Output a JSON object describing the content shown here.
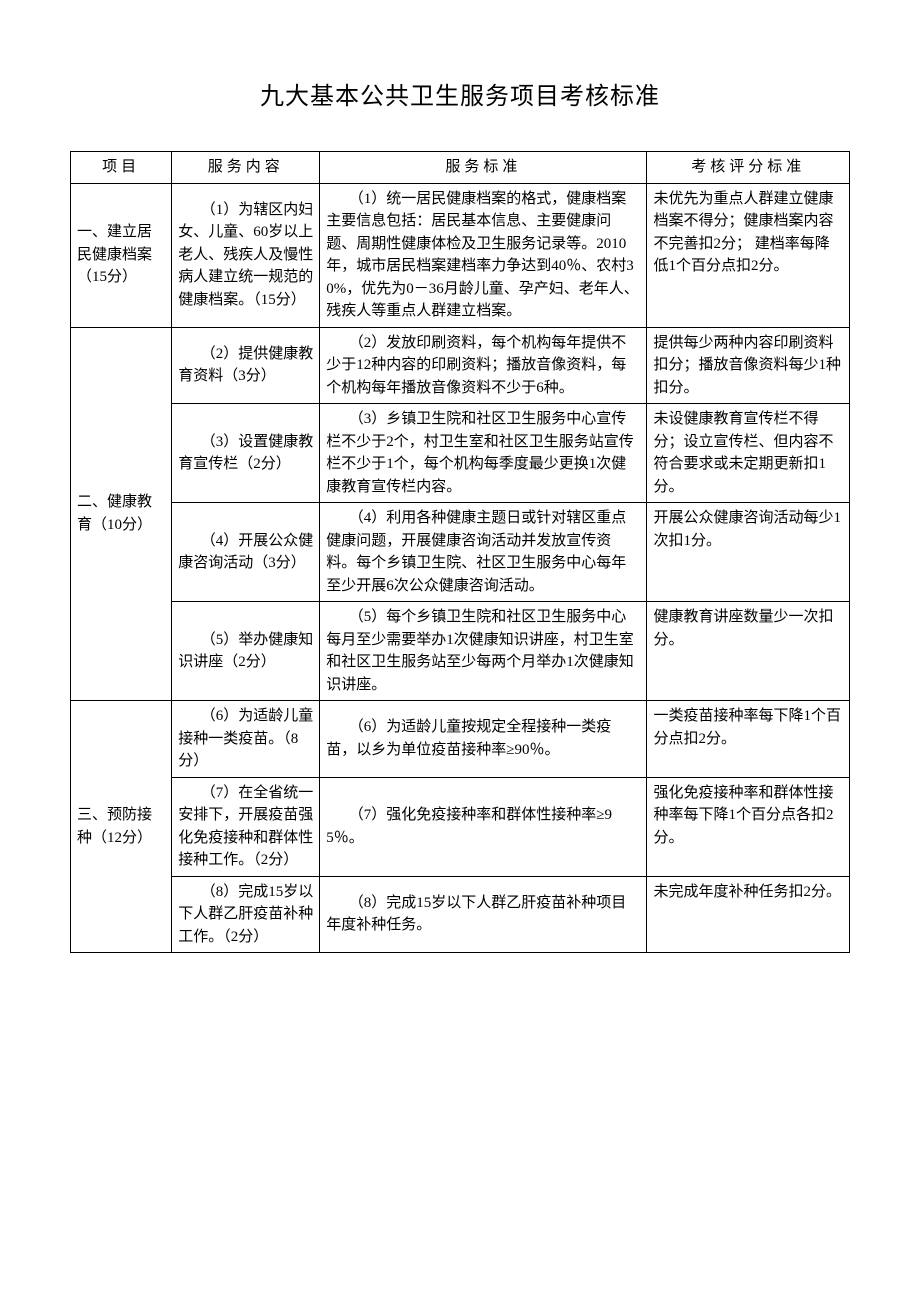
{
  "title": "九大基本公共卫生服务项目考核标准",
  "headers": {
    "project": "项目",
    "content": "服务内容",
    "standard": "服务标准",
    "scoring": "考核评分标准"
  },
  "sections": [
    {
      "project": "一、建立居民健康档案（15分）",
      "rows": [
        {
          "content": "（1）为辖区内妇女、儿童、60岁以上老人、残疾人及慢性病人建立统一规范的健康档案。（15分）",
          "standard": "（1）统一居民健康档案的格式，健康档案主要信息包括：居民基本信息、主要健康问题、周期性健康体检及卫生服务记录等。2010年，城市居民档案建档率力争达到40％、农村30%，优先为0－36月龄儿童、孕产妇、老年人、残疾人等重点人群建立档案。",
          "scoring": "未优先为重点人群建立健康档案不得分；健康档案内容不完善扣2分； 建档率每降低1个百分点扣2分。"
        }
      ]
    },
    {
      "project": "二、健康教育（10分）",
      "rows": [
        {
          "content": "（2）提供健康教育资料（3分）",
          "standard": "（2）发放印刷资料，每个机构每年提供不少于12种内容的印刷资料；播放音像资料，每个机构每年播放音像资料不少于6种。",
          "scoring": "提供每少两种内容印刷资料扣分；播放音像资料每少1种扣分。"
        },
        {
          "content": "（3）设置健康教育宣传栏（2分）",
          "standard": "（3）乡镇卫生院和社区卫生服务中心宣传栏不少于2个，村卫生室和社区卫生服务站宣传栏不少于1个，每个机构每季度最少更换1次健康教育宣传栏内容。",
          "scoring": "未设健康教育宣传栏不得分；设立宣传栏、但内容不符合要求或未定期更新扣1分。"
        },
        {
          "content": "（4）开展公众健康咨询活动（3分）",
          "standard": "（4）利用各种健康主题日或针对辖区重点健康问题，开展健康咨询活动并发放宣传资料。每个乡镇卫生院、社区卫生服务中心每年至少开展6次公众健康咨询活动。",
          "scoring": "开展公众健康咨询活动每少1次扣1分。"
        },
        {
          "content": "（5）举办健康知识讲座（2分）",
          "standard": "（5）每个乡镇卫生院和社区卫生服务中心每月至少需要举办1次健康知识讲座，村卫生室和社区卫生服务站至少每两个月举办1次健康知识讲座。",
          "scoring": "健康教育讲座数量少一次扣分。"
        }
      ]
    },
    {
      "project": "三、预防接种（12分）",
      "rows": [
        {
          "content": "（6）为适龄儿童接种一类疫苗。（8分）",
          "standard": "（6）为适龄儿童按规定全程接种一类疫苗，以乡为单位疫苗接种率≥90％。",
          "scoring": "一类疫苗接种率每下降1个百分点扣2分。"
        },
        {
          "content": "（7）在全省统一安排下，开展疫苗强化免疫接种和群体性接种工作。（2分）",
          "standard": "（7）强化免疫接种率和群体性接种率≥95％。",
          "scoring": "强化免疫接种率和群体性接种率每下降1个百分点各扣2分。"
        },
        {
          "content": "（8）完成15岁以下人群乙肝疫苗补种工作。（2分）",
          "standard": "（8）完成15岁以下人群乙肝疫苗补种项目年度补种任务。",
          "scoring": "未完成年度补种任务扣2分。"
        }
      ]
    }
  ]
}
